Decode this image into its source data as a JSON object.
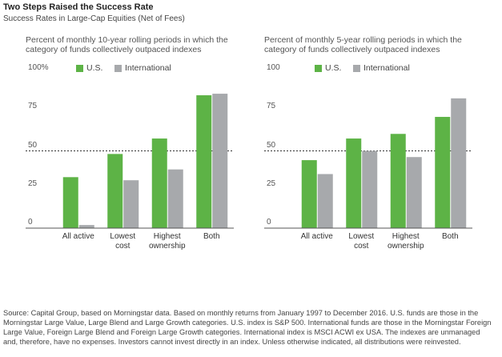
{
  "title": "Two Steps Raised the Success Rate",
  "subtitle": "Success Rates in Large-Cap Equities (Net of Fees)",
  "source": "Source: Capital Group, based on Morningstar data. Based on monthly returns from January 1997 to December 2016. U.S. funds are those in the Morningstar Large Value, Large Blend and Large Growth categories. U.S. index is S&P 500. International funds are those in the Morningstar Foreign Large Value, Foreign Large Blend and Foreign Large Growth categories. International index is MSCI ACWI ex USA. The indexes are unmanaged and, therefore, have no expenses. Investors cannot invest directly in an index. Unless otherwise indicated, all distributions were reinvested.",
  "chart_data": [
    {
      "type": "bar",
      "subtitle": "Percent of monthly 10-year rolling periods in which the category of funds collectively outpaced indexes",
      "categories": [
        "All active",
        "Lowest\ncost",
        "Highest\nownership",
        "Both"
      ],
      "series": [
        {
          "name": "U.S.",
          "color": "#5db346",
          "values": [
            33,
            48,
            58,
            86
          ]
        },
        {
          "name": "International",
          "color": "#a7a9ac",
          "values": [
            2,
            31,
            38,
            87
          ]
        }
      ],
      "ylim": [
        0,
        100
      ],
      "yticks": [
        0,
        25,
        50,
        75,
        {
          "value": 100,
          "label": "100%"
        }
      ],
      "reference_line": 50
    },
    {
      "type": "bar",
      "subtitle": "Percent of monthly 5-year rolling periods in which the category of funds collectively outpaced indexes",
      "categories": [
        "All active",
        "Lowest\ncost",
        "Highest\nownership",
        "Both"
      ],
      "series": [
        {
          "name": "U.S.",
          "color": "#5db346",
          "values": [
            44,
            58,
            61,
            72
          ]
        },
        {
          "name": "International",
          "color": "#a7a9ac",
          "values": [
            35,
            50,
            46,
            84
          ]
        }
      ],
      "ylim": [
        0,
        100
      ],
      "yticks": [
        0,
        25,
        50,
        75,
        100
      ],
      "reference_line": 50
    }
  ]
}
